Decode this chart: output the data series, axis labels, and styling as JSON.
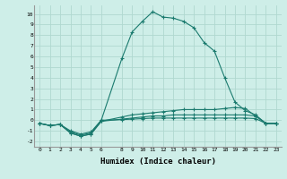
{
  "xlabel": "Humidex (Indice chaleur)",
  "background_color": "#ceeee8",
  "grid_color": "#b0d8d0",
  "line_color": "#1a7a6e",
  "xlim": [
    -0.5,
    23.5
  ],
  "ylim": [
    -2.5,
    10.8
  ],
  "xticks": [
    0,
    1,
    2,
    3,
    4,
    5,
    6,
    8,
    9,
    10,
    11,
    12,
    13,
    14,
    15,
    16,
    17,
    18,
    19,
    20,
    21,
    22,
    23
  ],
  "yticks": [
    -2,
    -1,
    0,
    1,
    2,
    3,
    4,
    5,
    6,
    7,
    8,
    9,
    10
  ],
  "series": [
    {
      "x": [
        0,
        1,
        2,
        3,
        4,
        5,
        6,
        8,
        9,
        10,
        11,
        12,
        13,
        14,
        15,
        16,
        17,
        18,
        19,
        20,
        21,
        22,
        23
      ],
      "y": [
        -0.3,
        -0.5,
        -0.4,
        -1.1,
        -1.4,
        -1.2,
        0.0,
        5.8,
        8.3,
        9.3,
        10.2,
        9.7,
        9.6,
        9.3,
        8.7,
        7.3,
        6.5,
        4.0,
        1.7,
        0.9,
        0.5,
        -0.3,
        -0.3
      ]
    },
    {
      "x": [
        0,
        1,
        2,
        3,
        4,
        5,
        6,
        8,
        9,
        10,
        11,
        12,
        13,
        14,
        15,
        16,
        17,
        18,
        19,
        20,
        21,
        22,
        23
      ],
      "y": [
        -0.3,
        -0.5,
        -0.4,
        -1.2,
        -1.5,
        -1.3,
        -0.1,
        0.3,
        0.5,
        0.6,
        0.7,
        0.8,
        0.9,
        1.0,
        1.0,
        1.0,
        1.0,
        1.1,
        1.2,
        1.1,
        0.4,
        -0.3,
        -0.3
      ]
    },
    {
      "x": [
        0,
        1,
        2,
        3,
        4,
        5,
        6,
        8,
        9,
        10,
        11,
        12,
        13,
        14,
        15,
        16,
        17,
        18,
        19,
        20,
        21,
        22,
        23
      ],
      "y": [
        -0.3,
        -0.5,
        -0.4,
        -1.2,
        -1.5,
        -1.3,
        -0.1,
        0.1,
        0.2,
        0.3,
        0.4,
        0.4,
        0.5,
        0.5,
        0.5,
        0.5,
        0.5,
        0.5,
        0.5,
        0.5,
        0.4,
        -0.3,
        -0.3
      ]
    },
    {
      "x": [
        0,
        1,
        2,
        3,
        4,
        5,
        6,
        8,
        9,
        10,
        11,
        12,
        13,
        14,
        15,
        16,
        17,
        18,
        19,
        20,
        21,
        22,
        23
      ],
      "y": [
        -0.3,
        -0.5,
        -0.4,
        -1.0,
        -1.3,
        -1.1,
        0.0,
        0.05,
        0.1,
        0.15,
        0.2,
        0.2,
        0.2,
        0.2,
        0.2,
        0.2,
        0.2,
        0.2,
        0.2,
        0.2,
        0.15,
        -0.3,
        -0.3
      ]
    }
  ]
}
